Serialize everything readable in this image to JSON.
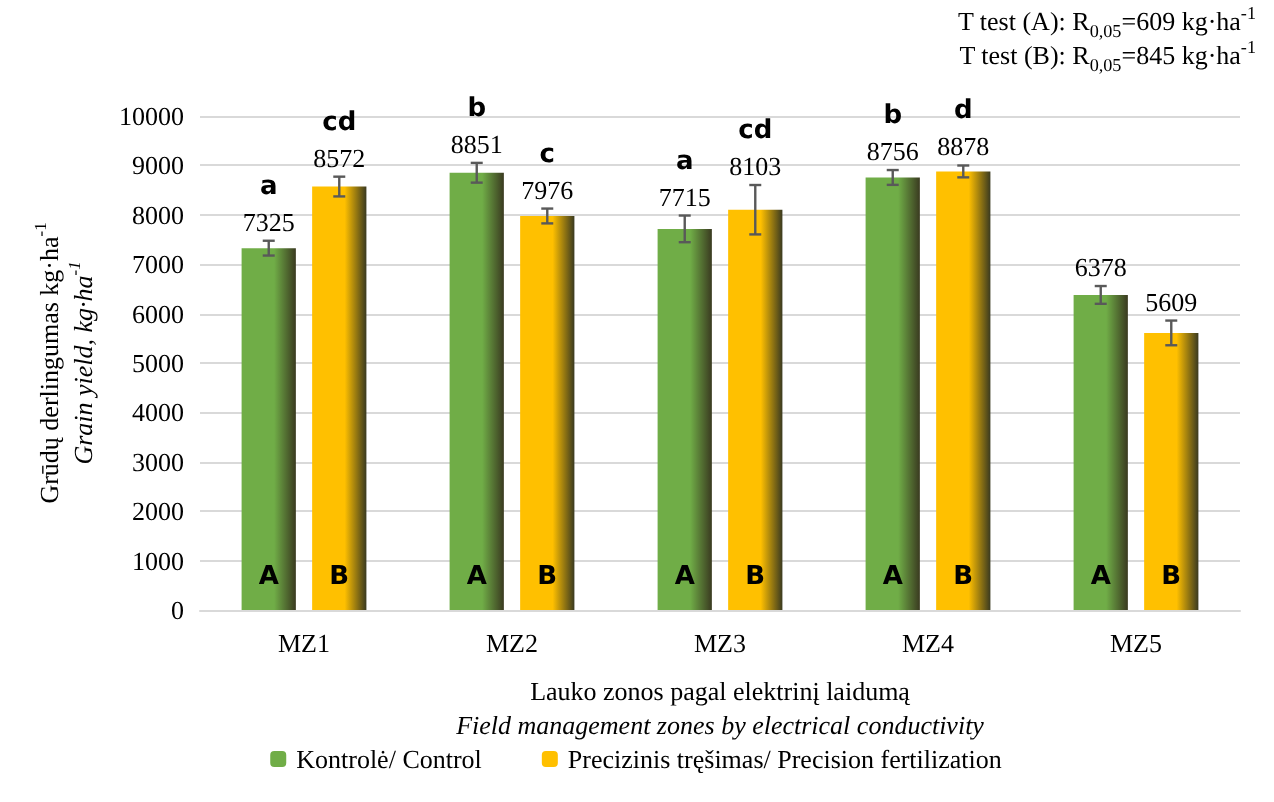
{
  "chart_data": {
    "type": "bar",
    "xlabel": "Lauko zonos pagal elektrinį laidumą\nField management zones by electrical conductivity",
    "ylabel": "Grūdų derlingumas kg·ha$^{-1}$\nGrain yield, kg·ha$^{-1}$",
    "categories": [
      "MZ1",
      "MZ2",
      "MZ3",
      "MZ4",
      "MZ5"
    ],
    "series": [
      {
        "name": "Kontrolė/ Control",
        "color": "#70ad47",
        "values": [
          7325,
          8851,
          7715,
          8756,
          6378
        ],
        "errors": [
          150,
          200,
          270,
          150,
          180
        ]
      },
      {
        "name": "Precizinis tręšimas/ Precision fertilization",
        "color": "#ffc000",
        "values": [
          8572,
          7976,
          8103,
          8878,
          5609
        ],
        "errors": [
          200,
          150,
          500,
          120,
          250
        ]
      }
    ],
    "ylim": [
      0,
      10000
    ],
    "yticks": [
      0,
      1000,
      2000,
      3000,
      4000,
      5000,
      6000,
      7000,
      8000,
      9000,
      10000
    ],
    "grid": "y",
    "legend": "bottom",
    "data_labels": true,
    "annotations": [
      "T test (A): R$_{0,05}$=609 kg·ha$^{-1}$",
      "T test (B): R$_{0,05}$=845 kg·ha$^{-1}$",
      {
        "text": "a",
        "x": "MZ1",
        "y": 7325
      },
      {
        "text": "cd",
        "x": "MZ1",
        "y": 8572
      },
      {
        "text": "A",
        "x": "MZ1",
        "y": 670
      },
      {
        "text": "B",
        "x": "MZ1",
        "y": 670
      },
      {
        "text": "b",
        "x": "MZ2",
        "y": 8851
      },
      {
        "text": "c",
        "x": "MZ2",
        "y": 7976
      },
      {
        "text": "A",
        "x": "MZ2",
        "y": 670
      },
      {
        "text": "B",
        "x": "MZ2",
        "y": 670
      },
      {
        "text": "a",
        "x": "MZ3",
        "y": 7715
      },
      {
        "text": "cd",
        "x": "MZ3",
        "y": 8103
      },
      {
        "text": "A",
        "x": "MZ3",
        "y": 670
      },
      {
        "text": "B",
        "x": "MZ3",
        "y": 670
      },
      {
        "text": "b",
        "x": "MZ4",
        "y": 8756
      },
      {
        "text": "d",
        "x": "MZ4",
        "y": 8878
      },
      {
        "text": "A",
        "x": "MZ4",
        "y": 670
      },
      {
        "text": "B",
        "x": "MZ4",
        "y": 670
      },
      {
        "text": "A",
        "x": "MZ5",
        "y": 670
      },
      {
        "text": "B",
        "x": "MZ5",
        "y": 670
      }
    ]
  }
}
